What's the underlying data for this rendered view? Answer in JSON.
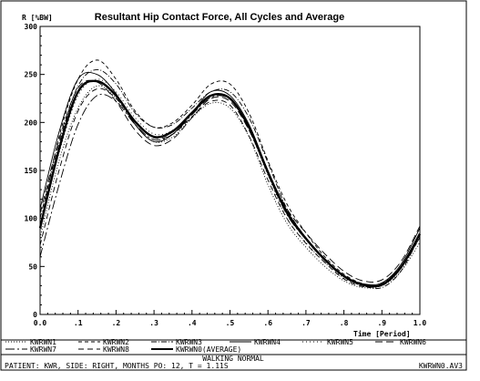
{
  "chart_data": {
    "type": "line",
    "title": "Resultant Hip Contact Force, All Cycles and Average",
    "ylabel": "R [%BW]",
    "xlabel": "Time [Period]",
    "xlim": [
      0.0,
      1.0
    ],
    "ylim": [
      0,
      300
    ],
    "x_ticks": [
      0.0,
      0.1,
      0.2,
      0.3,
      0.4,
      0.5,
      0.6,
      0.7,
      0.8,
      0.9,
      1.0
    ],
    "x_tick_labels": [
      "0.0",
      ".1",
      ".2",
      ".3",
      ".4",
      ".5",
      ".6",
      ".7",
      ".8",
      ".9",
      "1.0"
    ],
    "y_ticks": [
      0,
      50,
      100,
      150,
      200,
      250,
      300
    ],
    "y_tick_labels": [
      "0",
      "50",
      "100",
      "150",
      "200",
      "250",
      "300"
    ],
    "x": [
      0.0,
      0.05,
      0.1,
      0.15,
      0.2,
      0.25,
      0.3,
      0.35,
      0.4,
      0.45,
      0.5,
      0.55,
      0.6,
      0.65,
      0.7,
      0.75,
      0.8,
      0.85,
      0.9,
      0.95,
      1.0
    ],
    "series": [
      {
        "name": "KWRWN1",
        "style": "dotted",
        "values": [
          80,
          160,
          215,
          238,
          225,
          198,
          180,
          185,
          205,
          220,
          215,
          185,
          135,
          95,
          70,
          50,
          35,
          28,
          30,
          45,
          75
        ]
      },
      {
        "name": "KWRWN2",
        "style": "dashed",
        "values": [
          92,
          185,
          245,
          265,
          245,
          212,
          195,
          200,
          218,
          240,
          240,
          210,
          160,
          115,
          85,
          60,
          42,
          32,
          30,
          48,
          80
        ]
      },
      {
        "name": "KWRWN3",
        "style": "dashdot",
        "values": [
          100,
          178,
          238,
          255,
          240,
          210,
          195,
          198,
          215,
          232,
          232,
          205,
          158,
          110,
          80,
          58,
          40,
          30,
          28,
          45,
          82
        ]
      },
      {
        "name": "KWRWN4",
        "style": "solid-thin",
        "values": [
          110,
          190,
          245,
          250,
          230,
          198,
          180,
          188,
          210,
          232,
          228,
          198,
          150,
          108,
          80,
          58,
          40,
          32,
          33,
          52,
          90
        ]
      },
      {
        "name": "KWRWN5",
        "style": "dotted-sparse",
        "values": [
          88,
          168,
          228,
          245,
          232,
          205,
          188,
          192,
          210,
          228,
          224,
          192,
          145,
          100,
          75,
          54,
          38,
          30,
          31,
          50,
          85
        ]
      },
      {
        "name": "KWRWN6",
        "style": "longdash",
        "values": [
          105,
          182,
          236,
          242,
          222,
          192,
          176,
          183,
          205,
          225,
          222,
          192,
          148,
          110,
          85,
          63,
          45,
          35,
          36,
          55,
          92
        ]
      },
      {
        "name": "KWRWN7",
        "style": "dashdot-long",
        "values": [
          60,
          135,
          198,
          228,
          222,
          198,
          182,
          188,
          208,
          226,
          224,
          194,
          146,
          104,
          78,
          56,
          39,
          30,
          32,
          50,
          80
        ]
      },
      {
        "name": "KWRWN8",
        "style": "longdash-2",
        "values": [
          72,
          150,
          212,
          235,
          225,
          200,
          184,
          188,
          206,
          222,
          218,
          186,
          140,
          100,
          74,
          54,
          37,
          29,
          31,
          50,
          84
        ]
      },
      {
        "name": "KWRWN0(AVERAGE)",
        "style": "bold",
        "values": [
          90,
          172,
          232,
          243,
          228,
          201,
          185,
          191,
          210,
          228,
          225,
          195,
          148,
          106,
          79,
          57,
          40,
          31,
          31,
          49,
          84
        ]
      }
    ]
  },
  "footer": {
    "activity": "WALKING NORMAL",
    "info": "PATIENT: KWR, SIDE: RIGHT, MONTHS PO: 12, T = 1.11S",
    "filename": "KWRWN0.AV3"
  }
}
